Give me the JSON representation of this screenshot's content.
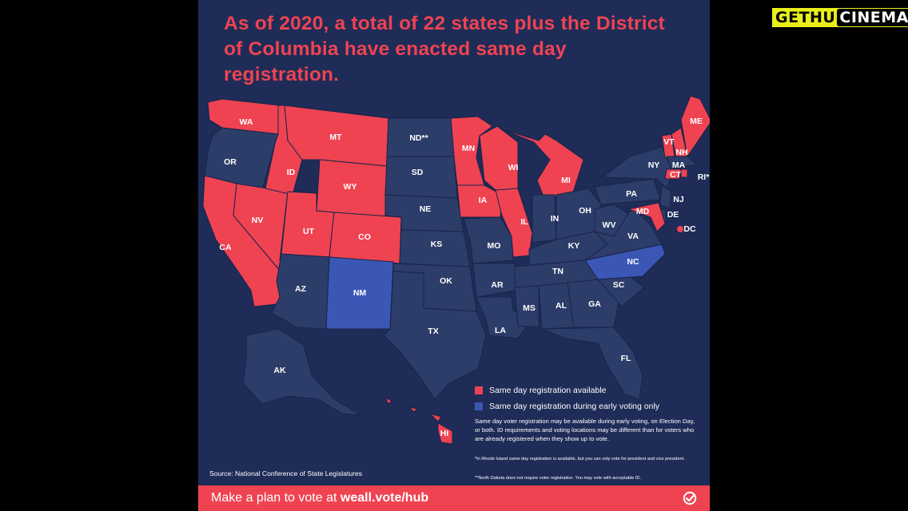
{
  "headline": "As of 2020, a total of 22 states plus the District of Columbia have enacted same day registration.",
  "brand": {
    "part1": "GETHU",
    "part2": "CINEMA"
  },
  "colors": {
    "background": "#1e2c57",
    "same_day_available": "#ef4352",
    "early_voting_only": "#3a57b5",
    "no_same_day": "#2d3d69",
    "state_border": "#18244a"
  },
  "map": {
    "states": [
      {
        "code": "WA",
        "category": "available"
      },
      {
        "code": "OR",
        "category": "none"
      },
      {
        "code": "CA",
        "category": "available"
      },
      {
        "code": "NV",
        "category": "available"
      },
      {
        "code": "ID",
        "category": "available"
      },
      {
        "code": "MT",
        "category": "available"
      },
      {
        "code": "WY",
        "category": "available"
      },
      {
        "code": "UT",
        "category": "available"
      },
      {
        "code": "CO",
        "category": "available"
      },
      {
        "code": "AZ",
        "category": "none"
      },
      {
        "code": "NM",
        "category": "early"
      },
      {
        "code": "ND",
        "label": "ND**",
        "category": "none"
      },
      {
        "code": "SD",
        "category": "none"
      },
      {
        "code": "NE",
        "category": "none"
      },
      {
        "code": "KS",
        "category": "none"
      },
      {
        "code": "OK",
        "category": "none"
      },
      {
        "code": "TX",
        "category": "none"
      },
      {
        "code": "MN",
        "category": "available"
      },
      {
        "code": "IA",
        "category": "available"
      },
      {
        "code": "MO",
        "category": "none"
      },
      {
        "code": "AR",
        "category": "none"
      },
      {
        "code": "LA",
        "category": "none"
      },
      {
        "code": "WI",
        "category": "available"
      },
      {
        "code": "IL",
        "category": "available"
      },
      {
        "code": "MI",
        "category": "available"
      },
      {
        "code": "IN",
        "category": "none"
      },
      {
        "code": "OH",
        "category": "none"
      },
      {
        "code": "KY",
        "category": "none"
      },
      {
        "code": "TN",
        "category": "none"
      },
      {
        "code": "MS",
        "category": "none"
      },
      {
        "code": "AL",
        "category": "none"
      },
      {
        "code": "GA",
        "category": "none"
      },
      {
        "code": "FL",
        "category": "none"
      },
      {
        "code": "SC",
        "category": "none"
      },
      {
        "code": "NC",
        "category": "early"
      },
      {
        "code": "VA",
        "category": "none"
      },
      {
        "code": "WV",
        "category": "none"
      },
      {
        "code": "PA",
        "category": "none"
      },
      {
        "code": "NY",
        "category": "none"
      },
      {
        "code": "NJ",
        "category": "none"
      },
      {
        "code": "DE",
        "category": "none"
      },
      {
        "code": "MD",
        "category": "available"
      },
      {
        "code": "DC",
        "category": "available"
      },
      {
        "code": "VT",
        "category": "available"
      },
      {
        "code": "NH",
        "category": "available"
      },
      {
        "code": "ME",
        "category": "available"
      },
      {
        "code": "MA",
        "category": "none"
      },
      {
        "code": "CT",
        "category": "available"
      },
      {
        "code": "RI",
        "label": "RI*",
        "category": "available"
      },
      {
        "code": "AK",
        "category": "none"
      },
      {
        "code": "HI",
        "category": "available"
      }
    ]
  },
  "legend": {
    "available_label": "Same day registration available",
    "early_label": "Same day registration during early voting only"
  },
  "notes": {
    "main": "Same day voter registration may be available during early voting, on Election Day, or both. ID requirements and voting locations may be different than for voters who are already registered when they show up to vote.",
    "ri": "*In Rhode Island same day registration is available, but you can only vote for president and vice president.",
    "nd": "**North Dakota does not require voter registration. You may vote with acceptable ID."
  },
  "source": "Source: National Conference of State Legislatures",
  "footer": {
    "prefix": "Make a plan to vote at ",
    "link": "weall.vote/hub"
  }
}
